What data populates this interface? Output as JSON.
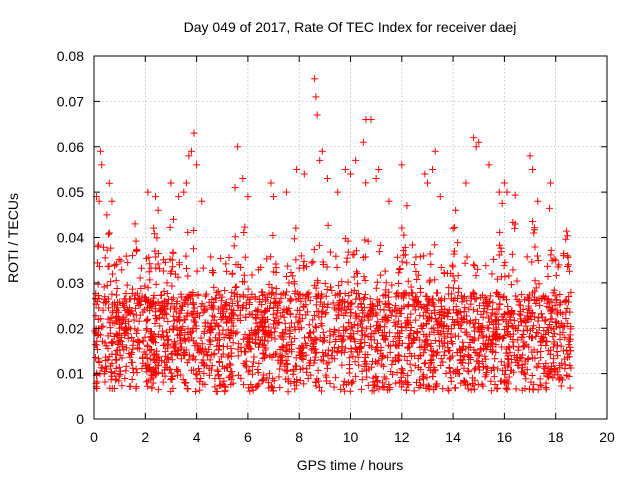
{
  "chart_data": {
    "type": "scatter",
    "title": "Day 049 of 2017, Rate Of TEC Index for receiver daej",
    "xlabel": "GPS time / hours",
    "ylabel": "ROTI / TECUs",
    "xlim": [
      0,
      20
    ],
    "ylim": [
      0,
      0.08
    ],
    "x_ticks": [
      0,
      2,
      4,
      6,
      8,
      10,
      12,
      14,
      16,
      18,
      20
    ],
    "x_tick_labels": [
      "0",
      "2",
      "4",
      "6",
      "8",
      "10",
      "12",
      "14",
      "16",
      "18",
      "20"
    ],
    "y_ticks": [
      0,
      0.01,
      0.02,
      0.03,
      0.04,
      0.05,
      0.06,
      0.07,
      0.08
    ],
    "y_tick_labels": [
      "0",
      "0.01",
      "0.02",
      "0.03",
      "0.04",
      "0.05",
      "0.06",
      "0.07",
      "0.08"
    ],
    "grid": true,
    "marker": "+",
    "series_color": "#ff0000",
    "data_x_range": [
      0,
      18.6
    ],
    "points": [
      [
        0.1,
        0.049
      ],
      [
        0.2,
        0.048
      ],
      [
        0.25,
        0.059
      ],
      [
        0.3,
        0.056
      ],
      [
        0.5,
        0.045
      ],
      [
        0.6,
        0.041
      ],
      [
        0.7,
        0.048
      ],
      [
        1.5,
        0.036
      ],
      [
        1.6,
        0.043
      ],
      [
        2.1,
        0.05
      ],
      [
        2.4,
        0.049
      ],
      [
        2.5,
        0.046
      ],
      [
        3.0,
        0.052
      ],
      [
        3.1,
        0.044
      ],
      [
        3.3,
        0.049
      ],
      [
        3.5,
        0.05
      ],
      [
        3.6,
        0.052
      ],
      [
        3.7,
        0.058
      ],
      [
        3.8,
        0.059
      ],
      [
        3.9,
        0.063
      ],
      [
        4.0,
        0.056
      ],
      [
        4.2,
        0.048
      ],
      [
        5.5,
        0.051
      ],
      [
        5.6,
        0.06
      ],
      [
        5.8,
        0.053
      ],
      [
        6.0,
        0.049
      ],
      [
        6.9,
        0.052
      ],
      [
        7.0,
        0.049
      ],
      [
        7.5,
        0.05
      ],
      [
        7.9,
        0.055
      ],
      [
        8.2,
        0.054
      ],
      [
        8.6,
        0.075
      ],
      [
        8.65,
        0.071
      ],
      [
        8.7,
        0.067
      ],
      [
        8.8,
        0.057
      ],
      [
        8.9,
        0.059
      ],
      [
        9.1,
        0.053
      ],
      [
        9.5,
        0.05
      ],
      [
        9.8,
        0.055
      ],
      [
        10.0,
        0.054
      ],
      [
        10.2,
        0.057
      ],
      [
        10.5,
        0.061
      ],
      [
        10.6,
        0.066
      ],
      [
        10.8,
        0.066
      ],
      [
        11.0,
        0.053
      ],
      [
        11.1,
        0.055
      ],
      [
        11.5,
        0.048
      ],
      [
        12.0,
        0.056
      ],
      [
        12.2,
        0.047
      ],
      [
        12.9,
        0.054
      ],
      [
        13.0,
        0.052
      ],
      [
        13.2,
        0.055
      ],
      [
        13.3,
        0.059
      ],
      [
        13.5,
        0.049
      ],
      [
        14.0,
        0.042
      ],
      [
        14.1,
        0.046
      ],
      [
        14.5,
        0.052
      ],
      [
        14.8,
        0.062
      ],
      [
        14.9,
        0.06
      ],
      [
        15.0,
        0.061
      ],
      [
        15.4,
        0.056
      ],
      [
        15.8,
        0.05
      ],
      [
        16.0,
        0.052
      ],
      [
        16.1,
        0.05
      ],
      [
        16.4,
        0.042
      ],
      [
        17.0,
        0.058
      ],
      [
        17.1,
        0.055
      ],
      [
        17.3,
        0.048
      ],
      [
        17.8,
        0.052
      ],
      [
        18.0,
        0.035
      ],
      [
        18.3,
        0.036
      ],
      [
        18.5,
        0.034
      ]
    ]
  }
}
